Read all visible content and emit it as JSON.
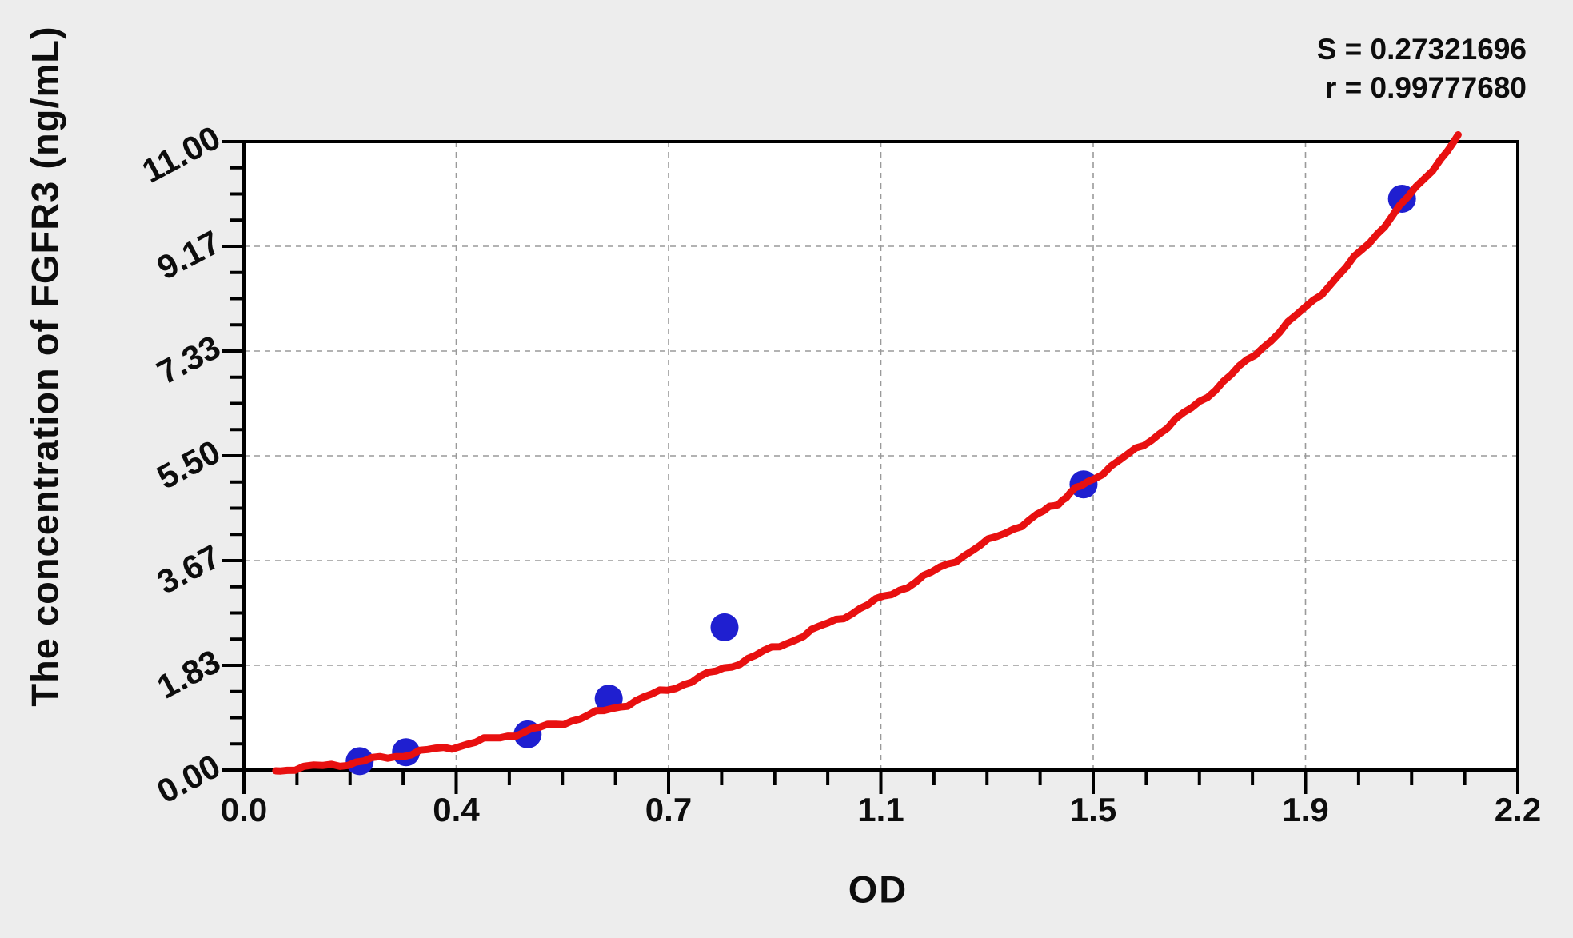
{
  "colors": {
    "background": "#ededed",
    "plot_background": "#ffffff",
    "frame": "#000000",
    "grid": "#9a9a9a",
    "point": "#1f1fd0",
    "curve": "#e81010",
    "text": "#0d0d0d"
  },
  "chart_data": {
    "type": "scatter",
    "xlabel": "OD",
    "ylabel": "The concentration of FGFR3 (ng/mL)",
    "xlim": [
      0,
      2.2
    ],
    "ylim": [
      0,
      11.0
    ],
    "x_tick_labels": [
      "0.0",
      "0.4",
      "0.7",
      "1.1",
      "1.5",
      "1.9",
      "2.2"
    ],
    "y_tick_labels": [
      "0.00",
      "1.83",
      "3.67",
      "5.50",
      "7.33",
      "9.17",
      "11.00"
    ],
    "x_minor_per_major": 3,
    "y_minor_per_major": 3,
    "grid": "dashed-at-major-ticks",
    "legend_position": "none",
    "annotations": {
      "s_text": "S = 0.27321696",
      "r_text": "r = 0.99777680"
    },
    "series": [
      {
        "name": "standard-points",
        "type": "scatter",
        "marker": "circle",
        "od": [
          0.2,
          0.28,
          0.49,
          0.63,
          0.83,
          1.45,
          2.0
        ],
        "conc": [
          0.156,
          0.312,
          0.625,
          1.25,
          2.5,
          5.0,
          10.0
        ]
      },
      {
        "name": "fit-curve",
        "type": "line",
        "points_od_conc": [
          [
            0.055,
            0.0
          ],
          [
            0.166,
            0.1
          ],
          [
            0.276,
            0.27
          ],
          [
            0.387,
            0.46
          ],
          [
            0.497,
            0.7
          ],
          [
            0.608,
            0.99
          ],
          [
            0.718,
            1.36
          ],
          [
            0.829,
            1.78
          ],
          [
            0.939,
            2.24
          ],
          [
            1.05,
            2.76
          ],
          [
            1.16,
            3.3
          ],
          [
            1.271,
            3.92
          ],
          [
            1.381,
            4.52
          ],
          [
            1.446,
            4.97
          ],
          [
            1.554,
            5.7
          ],
          [
            1.664,
            6.56
          ],
          [
            1.774,
            7.54
          ],
          [
            1.89,
            8.65
          ],
          [
            1.996,
            9.85
          ],
          [
            2.097,
            11.07
          ]
        ]
      }
    ]
  }
}
